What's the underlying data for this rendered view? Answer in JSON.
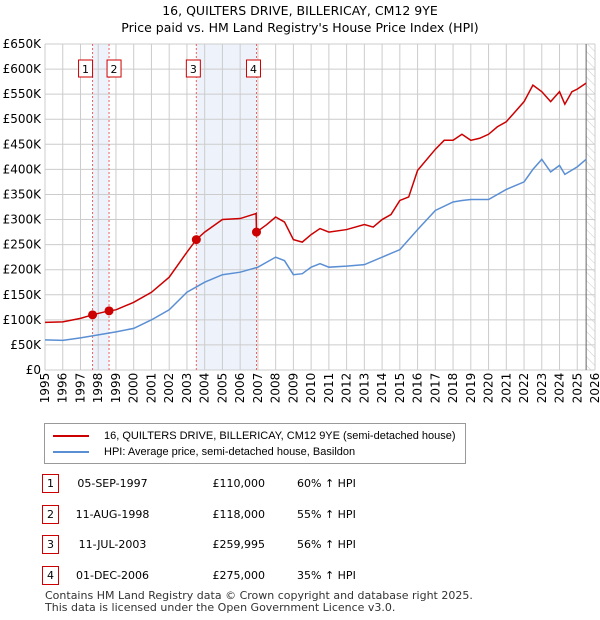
{
  "title": "16, QUILTERS DRIVE, BILLERICAY, CM12 9YE",
  "subtitle": "Price paid vs. HM Land Registry's House Price Index (HPI)",
  "legend": {
    "red": "16, QUILTERS DRIVE, BILLERICAY, CM12 9YE (semi-detached house)",
    "blue": "HPI: Average price, semi-detached house, Basildon"
  },
  "transactions": [
    {
      "n": "1",
      "date": "05-SEP-1997",
      "price": "£110,000",
      "hpi": "60% ↑ HPI"
    },
    {
      "n": "2",
      "date": "11-AUG-1998",
      "price": "£118,000",
      "hpi": "55% ↑ HPI"
    },
    {
      "n": "3",
      "date": "11-JUL-2003",
      "price": "£259,995",
      "hpi": "56% ↑ HPI"
    },
    {
      "n": "4",
      "date": "01-DEC-2006",
      "price": "£275,000",
      "hpi": "35% ↑ HPI"
    }
  ],
  "footer": [
    "Contains HM Land Registry data © Crown copyright and database right 2025.",
    "This data is licensed under the Open Government Licence v3.0."
  ],
  "colors": {
    "red": "#cc0000",
    "blue": "#5b8fd4",
    "shade": "#eef3fb"
  },
  "chart_data": {
    "type": "line",
    "xlim": [
      1995,
      2026
    ],
    "ylim": [
      0,
      650000
    ],
    "yticks": [
      0,
      50000,
      100000,
      150000,
      200000,
      250000,
      300000,
      350000,
      400000,
      450000,
      500000,
      550000,
      600000,
      650000
    ],
    "ytick_labels": [
      "£0",
      "£50K",
      "£100K",
      "£150K",
      "£200K",
      "£250K",
      "£300K",
      "£350K",
      "£400K",
      "£450K",
      "£500K",
      "£550K",
      "£600K",
      "£650K"
    ],
    "xticks": [
      "1995",
      "1996",
      "1997",
      "1998",
      "1999",
      "2000",
      "2001",
      "2002",
      "2003",
      "2004",
      "2005",
      "2006",
      "2007",
      "2008",
      "2009",
      "2010",
      "2011",
      "2012",
      "2013",
      "2014",
      "2015",
      "2016",
      "2017",
      "2018",
      "2019",
      "2020",
      "2021",
      "2022",
      "2023",
      "2024",
      "2025",
      "2026"
    ],
    "sales": [
      {
        "n": "1",
        "x": 1997.68,
        "y": 110000
      },
      {
        "n": "2",
        "x": 1998.61,
        "y": 118000
      },
      {
        "n": "3",
        "x": 2003.53,
        "y": 259995
      },
      {
        "n": "4",
        "x": 2006.92,
        "y": 275000
      }
    ],
    "shaded": [
      [
        1997.68,
        1998.61
      ],
      [
        2003.53,
        2006.92
      ]
    ],
    "data_end": 2025.5,
    "series": [
      {
        "name": "16, QUILTERS DRIVE, BILLERICAY, CM12 9YE (semi-detached house)",
        "color": "red",
        "x": [
          1995,
          1996,
          1997,
          1997.68,
          1998.61,
          1999,
          2000,
          2001,
          2002,
          2003,
          2003.53,
          2004,
          2005,
          2006,
          2006.9,
          2006.92,
          2007.5,
          2008,
          2008.5,
          2009,
          2009.5,
          2010,
          2010.5,
          2011,
          2012,
          2013,
          2013.5,
          2014,
          2014.5,
          2015,
          2015.5,
          2016,
          2017,
          2017.5,
          2018,
          2018.5,
          2019,
          2019.5,
          2020,
          2020.5,
          2021,
          2021.5,
          2022,
          2022.5,
          2023,
          2023.5,
          2024,
          2024.3,
          2024.7,
          2025,
          2025.5
        ],
        "y": [
          95000,
          96000,
          103000,
          110000,
          118000,
          120000,
          135000,
          155000,
          185000,
          235000,
          260000,
          275000,
          300000,
          302000,
          312000,
          275000,
          290000,
          305000,
          295000,
          260000,
          255000,
          270000,
          282000,
          275000,
          280000,
          290000,
          285000,
          300000,
          310000,
          338000,
          345000,
          398000,
          440000,
          458000,
          458000,
          470000,
          458000,
          462000,
          470000,
          485000,
          495000,
          515000,
          535000,
          568000,
          555000,
          535000,
          555000,
          530000,
          555000,
          560000,
          572000
        ]
      },
      {
        "name": "HPI: Average price, semi-detached house, Basildon",
        "color": "blue",
        "x": [
          1995,
          1996,
          1997,
          1998,
          1999,
          2000,
          2001,
          2002,
          2003,
          2004,
          2005,
          2006,
          2007,
          2008,
          2008.5,
          2009,
          2009.5,
          2010,
          2010.5,
          2011,
          2012,
          2013,
          2014,
          2015,
          2016,
          2017,
          2018,
          2018.5,
          2019,
          2020,
          2021,
          2022,
          2022.5,
          2023,
          2023.5,
          2024,
          2024.3,
          2025,
          2025.5
        ],
        "y": [
          60000,
          59000,
          64000,
          70000,
          76000,
          83000,
          100000,
          120000,
          155000,
          175000,
          190000,
          195000,
          205000,
          225000,
          218000,
          190000,
          192000,
          205000,
          212000,
          205000,
          207000,
          210000,
          225000,
          240000,
          280000,
          318000,
          335000,
          338000,
          340000,
          340000,
          360000,
          375000,
          400000,
          420000,
          395000,
          408000,
          390000,
          405000,
          420000
        ]
      }
    ]
  }
}
